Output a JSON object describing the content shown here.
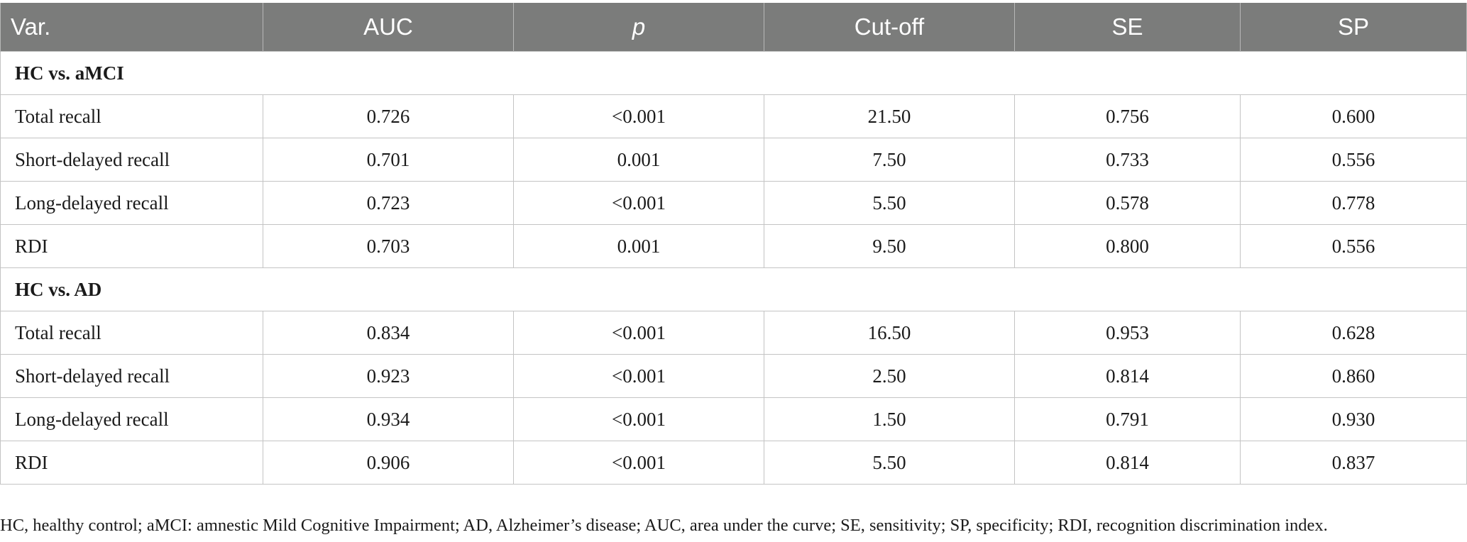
{
  "table": {
    "headers": [
      "Var.",
      "AUC",
      "p",
      "Cut-off",
      "SE",
      "SP"
    ],
    "groups": [
      {
        "label": "HC vs. aMCI",
        "rows": [
          [
            "Total recall",
            "0.726",
            "<0.001",
            "21.50",
            "0.756",
            "0.600"
          ],
          [
            "Short-delayed recall",
            "0.701",
            "0.001",
            "7.50",
            "0.733",
            "0.556"
          ],
          [
            "Long-delayed recall",
            "0.723",
            "<0.001",
            "5.50",
            "0.578",
            "0.778"
          ],
          [
            "RDI",
            "0.703",
            "0.001",
            "9.50",
            "0.800",
            "0.556"
          ]
        ]
      },
      {
        "label": "HC vs. AD",
        "rows": [
          [
            "Total recall",
            "0.834",
            "<0.001",
            "16.50",
            "0.953",
            "0.628"
          ],
          [
            "Short-delayed recall",
            "0.923",
            "<0.001",
            "2.50",
            "0.814",
            "0.860"
          ],
          [
            "Long-delayed recall",
            "0.934",
            "<0.001",
            "1.50",
            "0.791",
            "0.930"
          ],
          [
            "RDI",
            "0.906",
            "<0.001",
            "5.50",
            "0.814",
            "0.837"
          ]
        ]
      }
    ]
  },
  "footnote": "HC, healthy control; aMCI: amnestic Mild Cognitive Impairment; AD, Alzheimer’s disease; AUC, area under the curve; SE, sensitivity; SP, specificity; RDI, recognition discrimination index.",
  "colors": {
    "header_bg": "#7b7c7b",
    "header_text": "#ffffff",
    "grid": "#c4c4c4"
  }
}
